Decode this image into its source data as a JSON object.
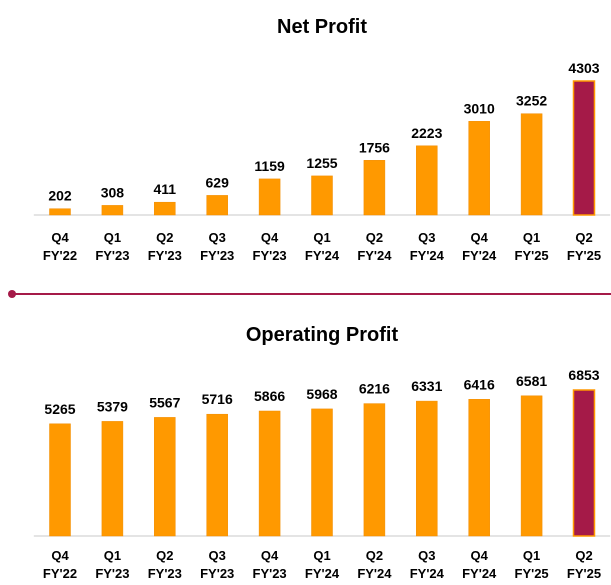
{
  "colors": {
    "bar": "#FF9900",
    "bar_edge": "#F08C00",
    "highlight": "#A51A48",
    "divider": "#A51A48",
    "axis": "#C8C8C8"
  },
  "chart_data": [
    {
      "type": "bar",
      "title": "Net Profit",
      "categories": [
        [
          "Q4",
          "FY'22"
        ],
        [
          "Q1",
          "FY'23"
        ],
        [
          "Q2",
          "FY'23"
        ],
        [
          "Q3",
          "FY'23"
        ],
        [
          "Q4",
          "FY'23"
        ],
        [
          "Q1",
          "FY'24"
        ],
        [
          "Q2",
          "FY'24"
        ],
        [
          "Q3",
          "FY'24"
        ],
        [
          "Q4",
          "FY'24"
        ],
        [
          "Q1",
          "FY'25"
        ],
        [
          "Q2",
          "FY'25"
        ]
      ],
      "values": [
        202,
        308,
        411,
        629,
        1159,
        1255,
        1756,
        2223,
        3010,
        3252,
        4303
      ],
      "highlight_index": 10,
      "ylim": [
        0,
        4303
      ],
      "xlabel": "",
      "ylabel": "",
      "grid": false,
      "legend": "none"
    },
    {
      "type": "bar",
      "title": "Operating Profit",
      "categories": [
        [
          "Q4",
          "FY'22"
        ],
        [
          "Q1",
          "FY'23"
        ],
        [
          "Q2",
          "FY'23"
        ],
        [
          "Q3",
          "FY'23"
        ],
        [
          "Q4",
          "FY'23"
        ],
        [
          "Q1",
          "FY'24"
        ],
        [
          "Q2",
          "FY'24"
        ],
        [
          "Q3",
          "FY'24"
        ],
        [
          "Q4",
          "FY'24"
        ],
        [
          "Q1",
          "FY'25"
        ],
        [
          "Q2",
          "FY'25"
        ]
      ],
      "values": [
        5265,
        5379,
        5567,
        5716,
        5866,
        5968,
        6216,
        6331,
        6416,
        6581,
        6853
      ],
      "highlight_index": 10,
      "ylim": [
        0,
        6853
      ],
      "xlabel": "",
      "ylabel": "",
      "grid": false,
      "legend": "none"
    }
  ]
}
